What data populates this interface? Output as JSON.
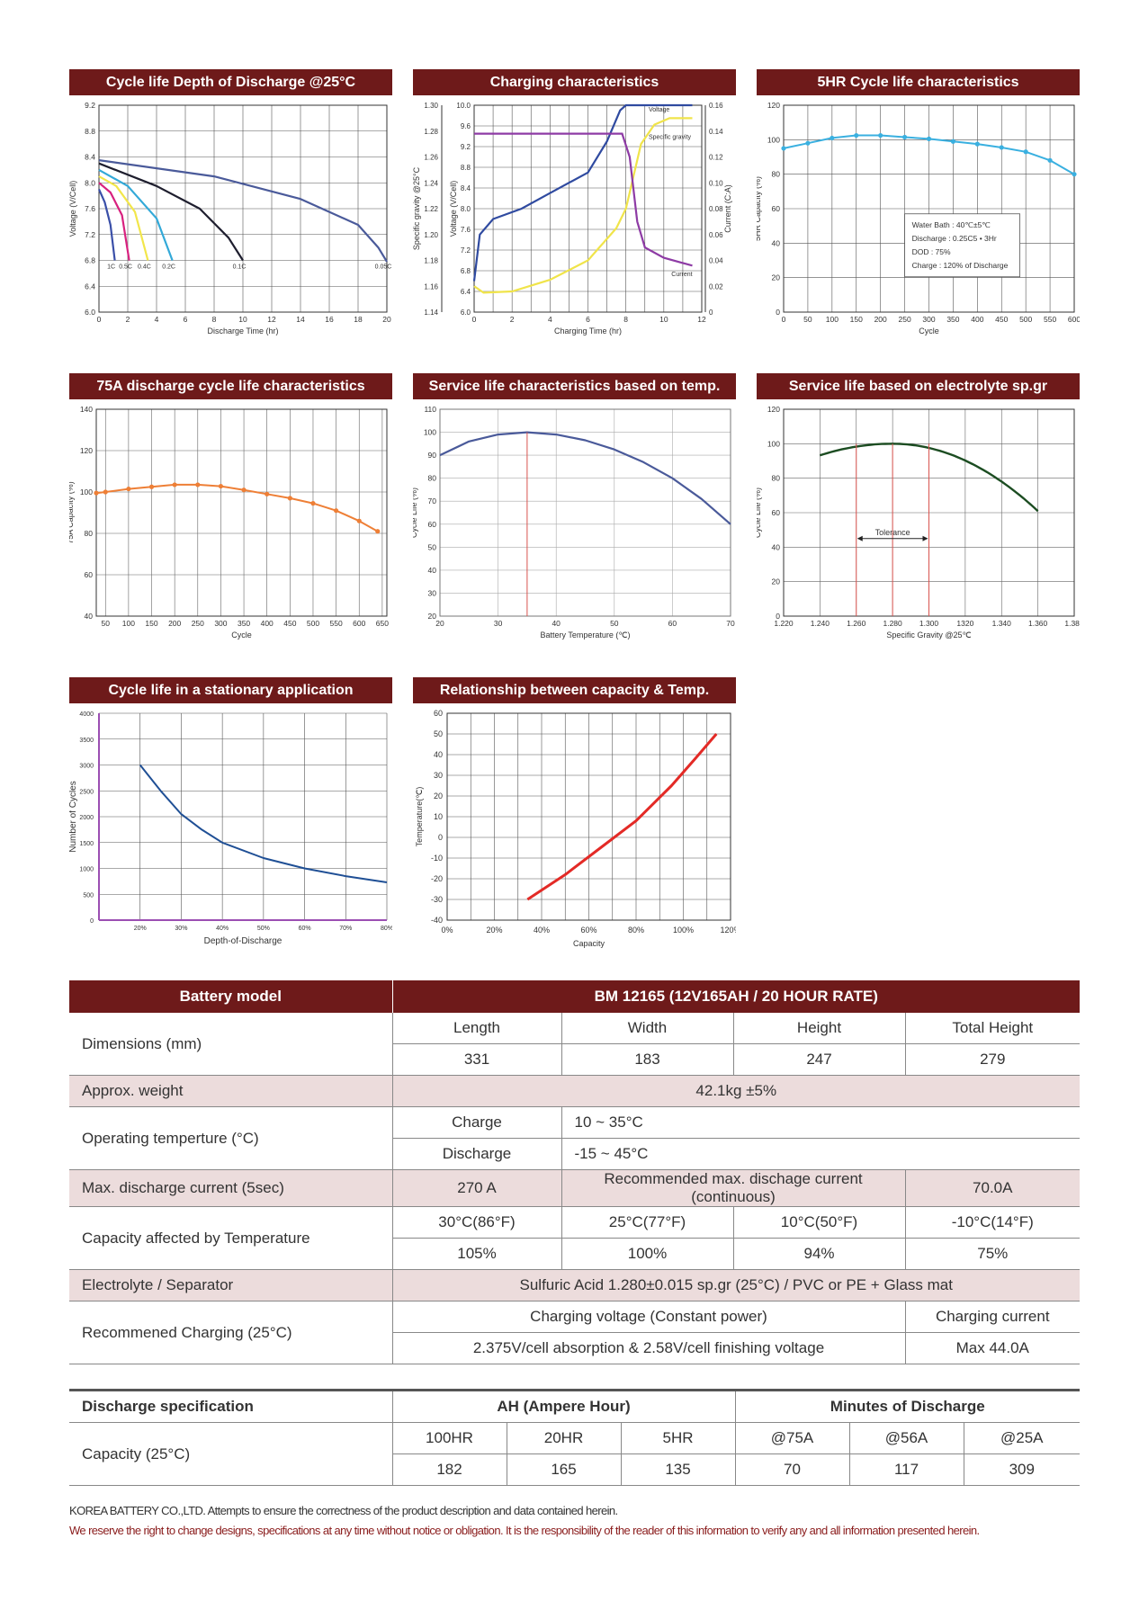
{
  "chart_data": [
    {
      "type": "line",
      "title": "Cycle life Depth of Discharge @25°C",
      "xlabel": "Discharge Time (hr)",
      "ylabel": "Voltage (V/Cell)",
      "xlim": [
        0,
        20
      ],
      "ylim": [
        6.0,
        9.2
      ],
      "x_ticks": [
        "0",
        "2",
        "4",
        "6",
        "8",
        "10",
        "12",
        "14",
        "16",
        "18",
        "20"
      ],
      "y_ticks": [
        "6.0",
        "6.4",
        "6.8",
        "7.2",
        "7.6",
        "8.0",
        "8.4",
        "8.8",
        "9.2"
      ],
      "series": [
        {
          "name": "1C",
          "color": "#3a4fa8",
          "points": [
            [
              0,
              7.9
            ],
            [
              0.4,
              7.7
            ],
            [
              0.8,
              7.35
            ],
            [
              1.1,
              6.8
            ]
          ]
        },
        {
          "name": "0.5C",
          "color": "#d8217f",
          "points": [
            [
              0,
              8.0
            ],
            [
              0.8,
              7.85
            ],
            [
              1.6,
              7.5
            ],
            [
              2.1,
              6.8
            ]
          ]
        },
        {
          "name": "0.4C",
          "color": "#f2e64a",
          "points": [
            [
              0,
              8.1
            ],
            [
              1.2,
              7.95
            ],
            [
              2.5,
              7.55
            ],
            [
              3.4,
              6.8
            ]
          ]
        },
        {
          "name": "0.2C",
          "color": "#33a9d8",
          "points": [
            [
              0,
              8.2
            ],
            [
              2,
              7.95
            ],
            [
              4,
              7.45
            ],
            [
              5.1,
              6.8
            ]
          ]
        },
        {
          "name": "0.1C",
          "color": "#1e1e2e",
          "points": [
            [
              0,
              8.3
            ],
            [
              4,
              7.95
            ],
            [
              7,
              7.6
            ],
            [
              9,
              7.15
            ],
            [
              10,
              6.8
            ]
          ]
        },
        {
          "name": "0.05C",
          "color": "#4a5a9a",
          "points": [
            [
              0,
              8.35
            ],
            [
              8,
              8.1
            ],
            [
              14,
              7.75
            ],
            [
              18,
              7.35
            ],
            [
              19.4,
              7.0
            ],
            [
              20,
              6.78
            ]
          ]
        }
      ]
    },
    {
      "type": "line",
      "title": "Charging characteristics",
      "xlabel": "Charging Time (hr)",
      "ylabel_left_outer": "Specific gravity @25°C",
      "ylabel_left_inner": "Voltage (V/Cell)",
      "ylabel_right": "Current (C:A)",
      "xlim": [
        0,
        12
      ],
      "x_ticks": [
        "0",
        "2",
        "4",
        "6",
        "8",
        "10",
        "12"
      ],
      "sg_ticks": [
        "1.14",
        "1.16",
        "1.18",
        "1.20",
        "1.22",
        "1.24",
        "1.26",
        "1.28",
        "1.30"
      ],
      "v_ticks": [
        "6.0",
        "6.4",
        "6.8",
        "7.2",
        "7.6",
        "8.0",
        "8.4",
        "8.8",
        "9.2",
        "9.6",
        "10.0"
      ],
      "cur_ticks": [
        "0",
        "0.02",
        "0.04",
        "0.06",
        "0.08",
        "0.10",
        "0.12",
        "0.14",
        "0.16"
      ],
      "annotations": [
        "Voltage",
        "Specific gravity",
        "Current"
      ],
      "series": [
        {
          "name": "Voltage",
          "color": "#2f4aa0",
          "axis": "voltage",
          "points": [
            [
              0,
              6.6
            ],
            [
              0.3,
              7.5
            ],
            [
              1,
              7.8
            ],
            [
              2.5,
              8.0
            ],
            [
              4,
              8.3
            ],
            [
              6,
              8.7
            ],
            [
              7,
              9.3
            ],
            [
              7.7,
              9.9
            ],
            [
              8,
              10.0
            ],
            [
              11.5,
              10.0
            ]
          ]
        },
        {
          "name": "Specific gravity",
          "color": "#f0e44a",
          "axis": "sg",
          "points": [
            [
              0,
              1.16
            ],
            [
              0.5,
              1.155
            ],
            [
              2,
              1.156
            ],
            [
              4,
              1.165
            ],
            [
              6,
              1.18
            ],
            [
              7.5,
              1.205
            ],
            [
              8,
              1.22
            ],
            [
              8.8,
              1.27
            ],
            [
              9.5,
              1.285
            ],
            [
              10.3,
              1.29
            ],
            [
              11.5,
              1.29
            ]
          ]
        },
        {
          "name": "Current",
          "color": "#8e3ba5",
          "axis": "current",
          "points": [
            [
              0,
              0.138
            ],
            [
              7.8,
              0.138
            ],
            [
              8.2,
              0.12
            ],
            [
              8.6,
              0.07
            ],
            [
              9,
              0.05
            ],
            [
              10,
              0.042
            ],
            [
              11,
              0.038
            ],
            [
              11.5,
              0.036
            ]
          ]
        }
      ]
    },
    {
      "type": "line",
      "title": "5HR Cycle life characteristics",
      "xlabel": "Cycle",
      "ylabel": "5HR Capacity (%)",
      "xlim": [
        0,
        600
      ],
      "ylim": [
        0,
        120
      ],
      "x_ticks": [
        "0",
        "50",
        "100",
        "150",
        "200",
        "250",
        "300",
        "350",
        "400",
        "450",
        "500",
        "550",
        "600"
      ],
      "y_ticks": [
        "0",
        "20",
        "40",
        "60",
        "80",
        "100",
        "120"
      ],
      "legend_box": [
        "Water Bath : 40℃±5℃",
        "Discharge : 0.25C5 • 3Hr",
        "DOD : 75%",
        "Charge : 120% of Discharge"
      ],
      "series": [
        {
          "name": "",
          "color": "#3ab0e0",
          "points": [
            [
              0,
              95
            ],
            [
              50,
              98
            ],
            [
              100,
              101
            ],
            [
              150,
              102.5
            ],
            [
              200,
              102.5
            ],
            [
              250,
              101.5
            ],
            [
              300,
              100.5
            ],
            [
              350,
              99
            ],
            [
              400,
              97.5
            ],
            [
              450,
              95.5
            ],
            [
              500,
              93
            ],
            [
              550,
              88
            ],
            [
              600,
              80
            ]
          ]
        }
      ]
    },
    {
      "type": "line",
      "title": "75A discharge cycle life characteristics",
      "xlabel": "Cycle",
      "ylabel": "75A Capacity (%)",
      "xlim": [
        30,
        660
      ],
      "ylim": [
        40,
        140
      ],
      "x_ticks": [
        "50",
        "100",
        "150",
        "200",
        "250",
        "300",
        "350",
        "400",
        "450",
        "500",
        "550",
        "600",
        "650"
      ],
      "y_ticks": [
        "40",
        "60",
        "80",
        "100",
        "120",
        "140"
      ],
      "series": [
        {
          "name": "",
          "color": "#ee7f36",
          "points": [
            [
              30,
              99.5
            ],
            [
              50,
              100
            ],
            [
              100,
              101.5
            ],
            [
              150,
              102.5
            ],
            [
              200,
              103.5
            ],
            [
              250,
              103.5
            ],
            [
              300,
              102.8
            ],
            [
              350,
              101
            ],
            [
              400,
              99
            ],
            [
              450,
              97
            ],
            [
              500,
              94.5
            ],
            [
              550,
              91
            ],
            [
              600,
              86
            ],
            [
              640,
              81
            ]
          ]
        }
      ]
    },
    {
      "type": "line",
      "title": "Service life characteristics based on temp.",
      "xlabel": "Battery Temperature (℃)",
      "ylabel": "Cycle Life (%)",
      "xlim": [
        20,
        70
      ],
      "ylim": [
        20,
        110
      ],
      "x_ticks": [
        "20",
        "30",
        "40",
        "50",
        "60",
        "70"
      ],
      "y_ticks": [
        "20",
        "30",
        "40",
        "50",
        "60",
        "70",
        "80",
        "90",
        "100",
        "110"
      ],
      "series": [
        {
          "name": "",
          "color": "#4a5a9a",
          "points": [
            [
              20,
              90
            ],
            [
              25,
              96
            ],
            [
              30,
              99
            ],
            [
              35,
              100
            ],
            [
              40,
              99
            ],
            [
              45,
              96.5
            ],
            [
              50,
              92.5
            ],
            [
              55,
              87
            ],
            [
              60,
              80
            ],
            [
              65,
              71
            ],
            [
              70,
              60
            ]
          ]
        }
      ]
    },
    {
      "type": "line",
      "title": "Service life based on electrolyte sp.gr",
      "xlabel": "Specific Gravity @25℃",
      "ylabel": "Cycle Life (%)",
      "xlim": [
        1.22,
        1.38
      ],
      "ylim": [
        0,
        120
      ],
      "x_ticks": [
        "1.220",
        "1.240",
        "1.260",
        "1.280",
        "1.300",
        "1320",
        "1.340",
        "1.360",
        "1.380"
      ],
      "y_ticks": [
        "0",
        "20",
        "40",
        "60",
        "80",
        "100",
        "120"
      ],
      "annotations": [
        "Tolerance"
      ],
      "series": [
        {
          "name": "",
          "color": "#1c4d22",
          "points": [
            [
              1.24,
              90
            ],
            [
              1.26,
              97
            ],
            [
              1.28,
              100
            ],
            [
              1.3,
              98
            ],
            [
              1.32,
              92
            ],
            [
              1.34,
              81
            ],
            [
              1.36,
              65
            ]
          ]
        }
      ]
    },
    {
      "type": "line",
      "title": "Cycle life in a stationary application",
      "xlabel": "Depth-of-Discharge",
      "ylabel": "Number of Cycles",
      "xlim": [
        10,
        80
      ],
      "ylim": [
        0,
        4000
      ],
      "x_ticks": [
        "20%",
        "30%",
        "40%",
        "50%",
        "60%",
        "70%",
        "80%"
      ],
      "y_ticks": [
        "0",
        "500",
        "1000",
        "1500",
        "2000",
        "2500",
        "3000",
        "3500",
        "4000"
      ],
      "series": [
        {
          "name": "",
          "color": "#1f4f95",
          "points": [
            [
              20,
              3000
            ],
            [
              25,
              2500
            ],
            [
              30,
              2050
            ],
            [
              35,
              1750
            ],
            [
              40,
              1500
            ],
            [
              50,
              1200
            ],
            [
              60,
              1000
            ],
            [
              70,
              850
            ],
            [
              80,
              730
            ]
          ]
        }
      ]
    },
    {
      "type": "line",
      "title": "Relationship between capacity & Temp.",
      "xlabel": "Capacity",
      "ylabel": "Temperature(℃)",
      "xlim": [
        0,
        120
      ],
      "ylim": [
        -40,
        60
      ],
      "x_ticks": [
        "0%",
        "20%",
        "40%",
        "60%",
        "80%",
        "100%",
        "120%"
      ],
      "y_ticks": [
        "-40",
        "-30",
        "-20",
        "-10",
        "0",
        "10",
        "20",
        "30",
        "40",
        "50",
        "60"
      ],
      "series": [
        {
          "name": "",
          "color": "#e32a26",
          "points": [
            [
              34,
              -30
            ],
            [
              50,
              -18
            ],
            [
              65,
              -5
            ],
            [
              80,
              8
            ],
            [
              95,
              25
            ],
            [
              105,
              38
            ],
            [
              114,
              50
            ]
          ]
        }
      ]
    }
  ],
  "spec_table": {
    "header": {
      "label": "Battery model",
      "value": "BM 12165 (12V165AH / 20 HOUR RATE)"
    },
    "dimensions": {
      "label": "Dimensions (mm)",
      "heads": [
        "Length",
        "Width",
        "Height",
        "Total Height"
      ],
      "values": [
        "331",
        "183",
        "247",
        "279"
      ]
    },
    "weight": {
      "label": "Approx. weight",
      "value": "42.1kg ±5%"
    },
    "operating": {
      "label": "Operating temperture (°C)",
      "charge_label": "Charge",
      "charge_value": "10 ~ 35°C",
      "discharge_label": "Discharge",
      "discharge_value": "-15 ~ 45°C"
    },
    "max_discharge": {
      "label": "Max. discharge current (5sec)",
      "value": "270 A",
      "rec_label": "Recommended max. dischage current (continuous)",
      "rec_value": "70.0A"
    },
    "capacity_temp": {
      "label": "Capacity affected by Temperature",
      "heads": [
        "30°C(86°F)",
        "25°C(77°F)",
        "10°C(50°F)",
        "-10°C(14°F)"
      ],
      "values": [
        "105%",
        "100%",
        "94%",
        "75%"
      ]
    },
    "electrolyte": {
      "label": "Electrolyte / Separator",
      "value": "Sulfuric Acid 1.280±0.015 sp.gr (25°C) / PVC or PE + Glass mat"
    },
    "charging": {
      "label": "Recommened Charging (25°C)",
      "voltage_head": "Charging voltage (Constant power)",
      "current_head": "Charging current",
      "voltage_value": "2.375V/cell absorption & 2.58V/cell finishing voltage",
      "current_value": "Max 44.0A"
    }
  },
  "discharge_table": {
    "label": "Discharge specification",
    "ah_head": "AH (Ampere Hour)",
    "min_head": "Minutes of Discharge",
    "row_label": "Capacity (25°C)",
    "heads": [
      "100HR",
      "20HR",
      "5HR",
      "@75A",
      "@56A",
      "@25A"
    ],
    "values": [
      "182",
      "165",
      "135",
      "70",
      "117",
      "309"
    ]
  },
  "footer": {
    "line1": "KOREA BATTERY CO.,LTD. Attempts to ensure the correctness of the product description and data contained herein.",
    "line2": "We reserve the right to change designs, specifications at any time without notice or obligation. It is the responsibility of the reader of this information to verify any and all information presented herein.",
    "line1_color": "#333333",
    "line2_color": "#8a1c1c"
  }
}
